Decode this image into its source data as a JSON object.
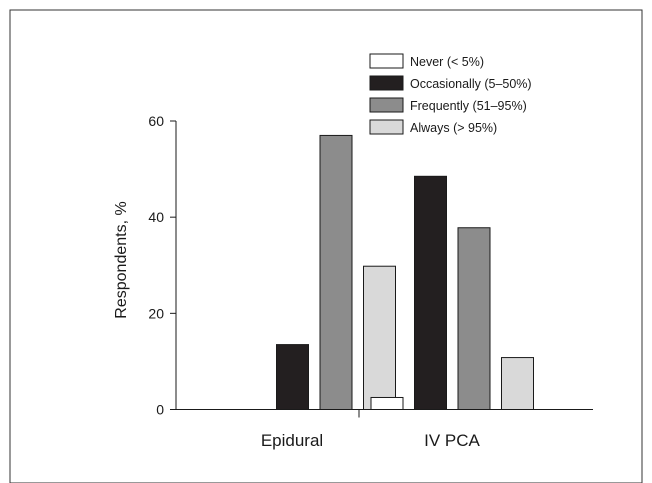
{
  "chart_data": {
    "type": "bar",
    "title": "",
    "xlabel": "",
    "ylabel": "Respondents, %",
    "ylim": [
      0,
      60
    ],
    "yticks": [
      0,
      20,
      40,
      60
    ],
    "categories": [
      "Epidural",
      "IV PCA"
    ],
    "series": [
      {
        "name": "Never (< 5%)",
        "values": [
          0,
          2.5
        ],
        "color": "#ffffff"
      },
      {
        "name": "Occasionally (5–50%)",
        "values": [
          13.5,
          48.5
        ],
        "color": "#231f20"
      },
      {
        "name": "Frequently (51–95%)",
        "values": [
          57,
          37.8
        ],
        "color": "#8c8c8c"
      },
      {
        "name": "Always (> 95%)",
        "values": [
          29.8,
          10.8
        ],
        "color": "#d9d9d9"
      }
    ],
    "grid": false,
    "legend_position": "top-right"
  }
}
